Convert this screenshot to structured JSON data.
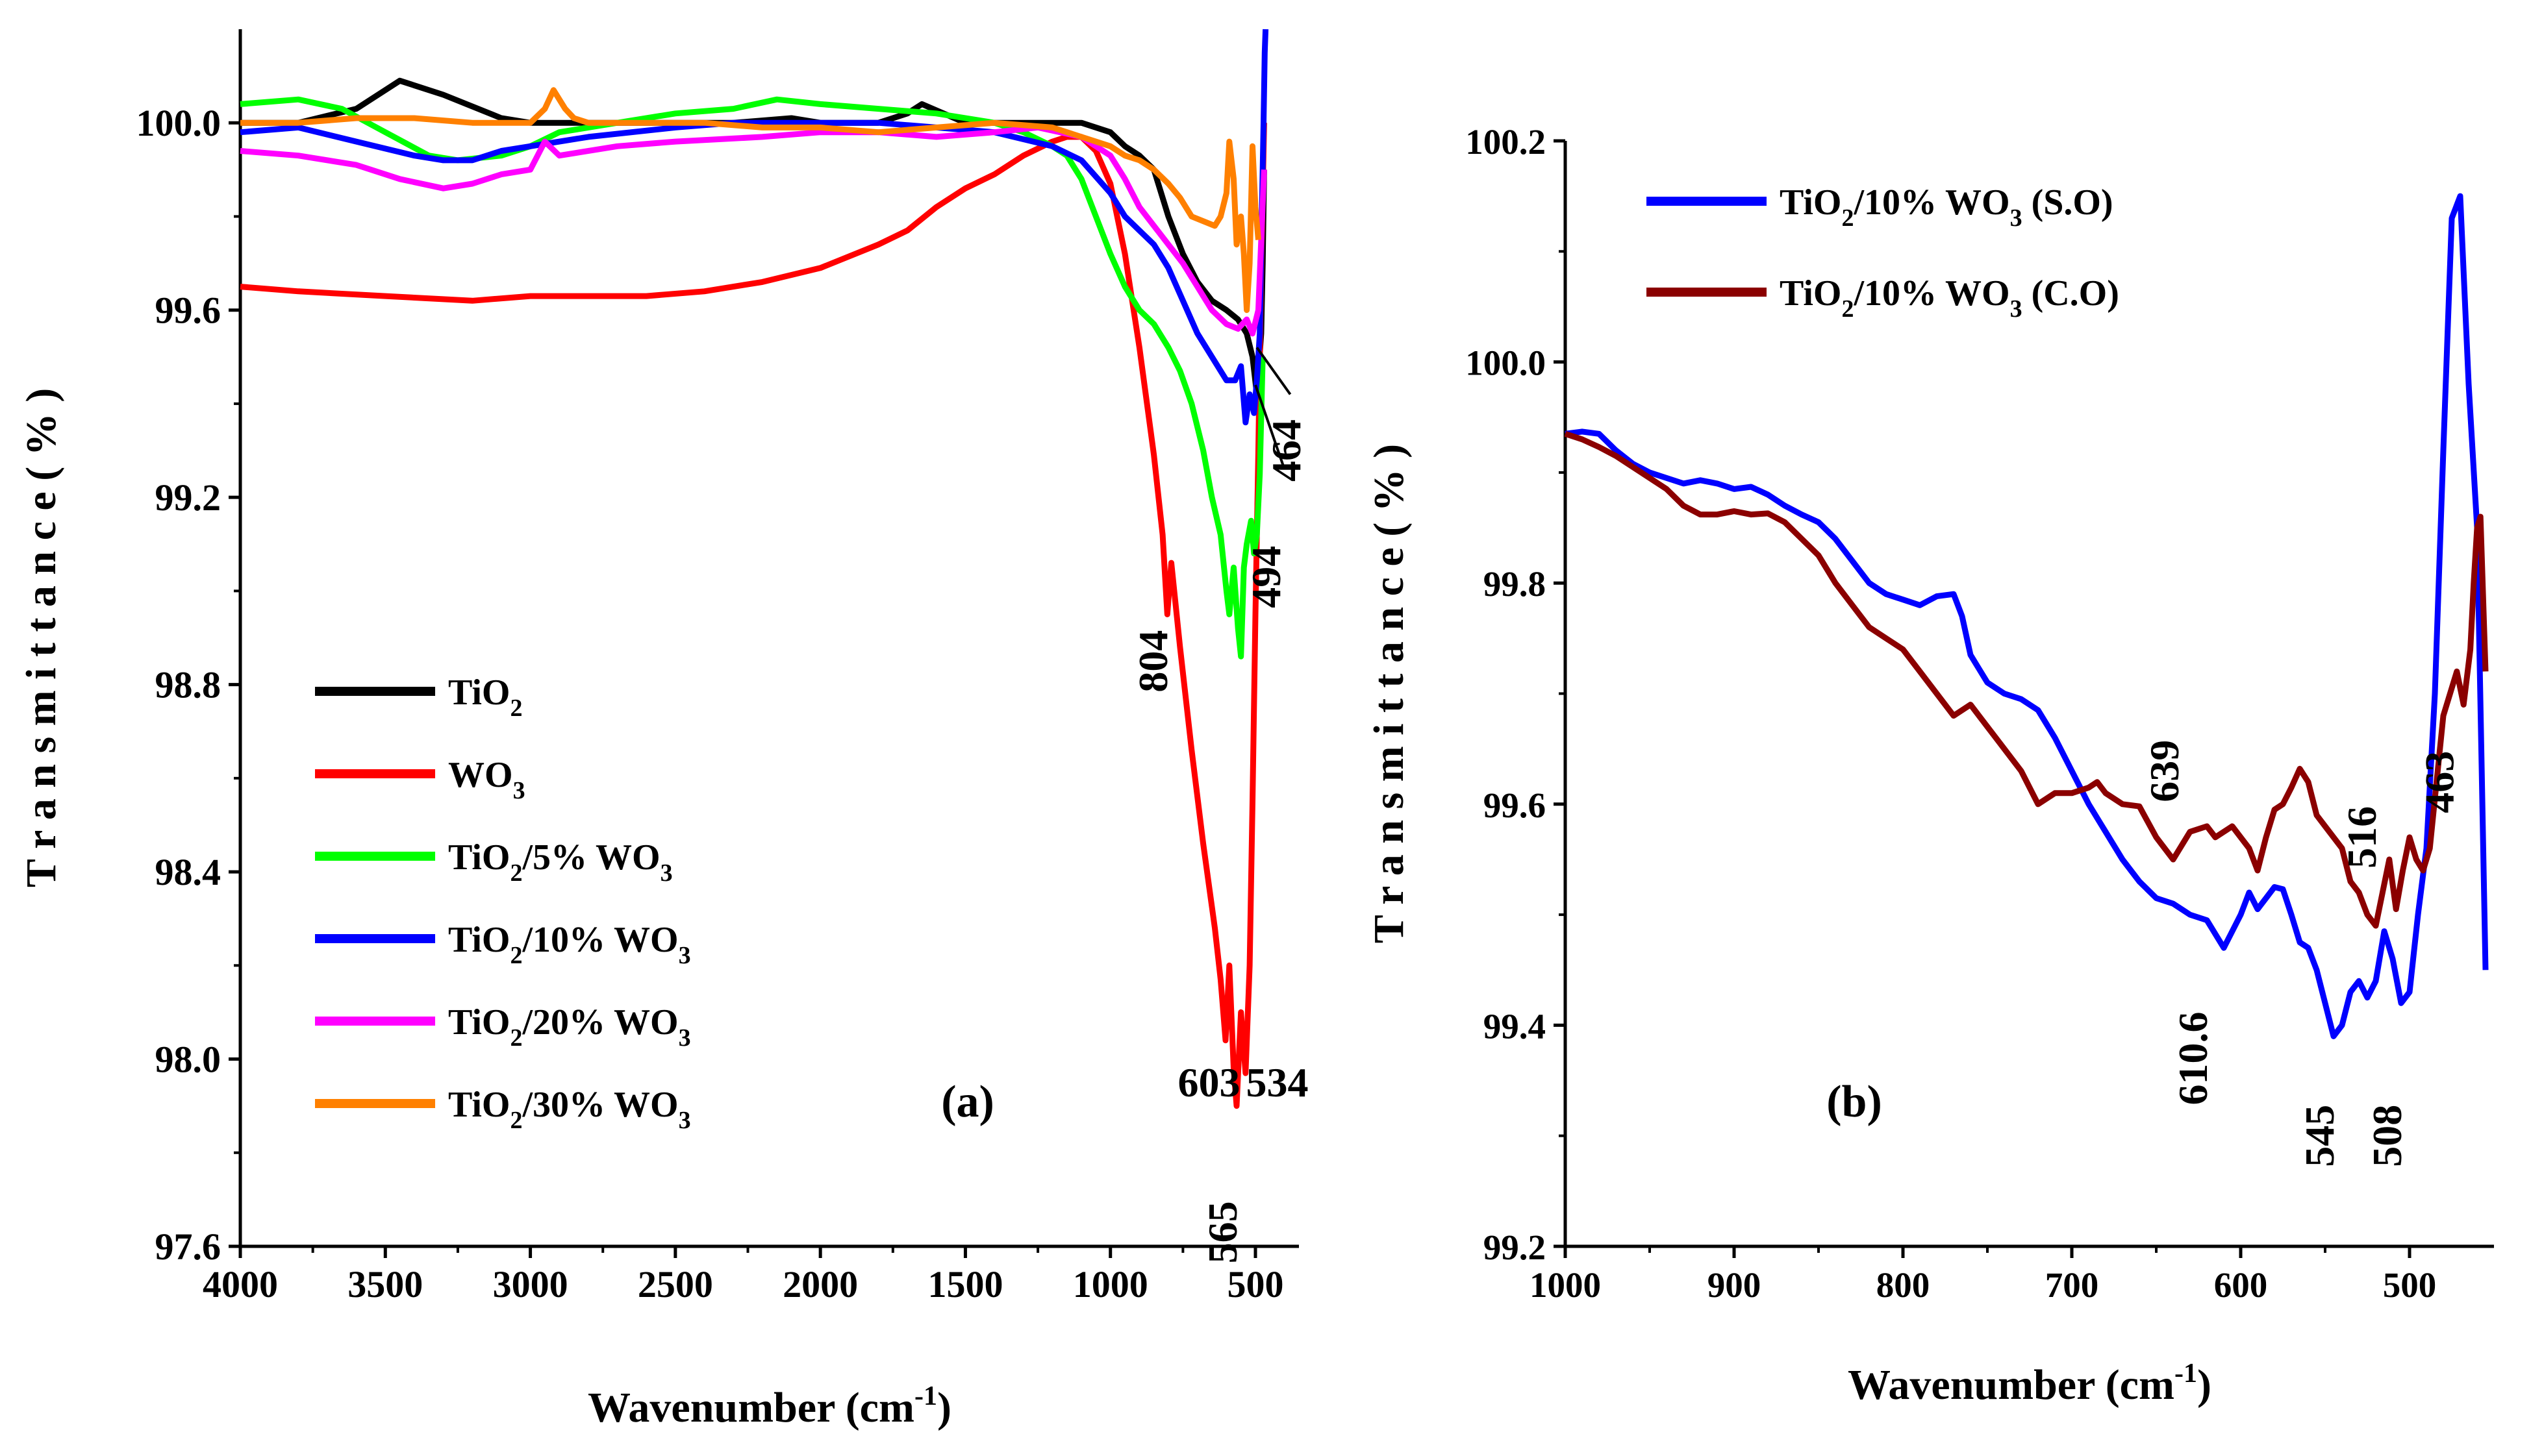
{
  "figure_labels": {
    "a": "(a)",
    "b": "(b)"
  },
  "chart_data": [
    {
      "id": "a",
      "type": "line",
      "title": "",
      "panel_label": "(a)",
      "xlabel": "Wavenumber (cm-1)",
      "xlabel_main": "Wavenumber (cm",
      "xlabel_sup": "-1",
      "xlabel_close": ")",
      "ylabel": "T r a n s m i t t a n c e  ( % )",
      "xlim": [
        4000,
        350
      ],
      "ylim": [
        97.6,
        100.2
      ],
      "xticks": [
        4000,
        3500,
        3000,
        2500,
        2000,
        1500,
        1000,
        500
      ],
      "yticks": [
        97.6,
        98.0,
        98.4,
        98.8,
        99.2,
        99.6,
        100.0
      ],
      "ytick_labels": [
        "97.6",
        "98.0",
        "98.4",
        "98.8",
        "99.2",
        "99.6",
        "100.0"
      ],
      "legend_position": "lower-left",
      "series": [
        {
          "name": "TiO2",
          "label": {
            "base": "TiO",
            "sub": "2",
            "rest": "",
            "sub2": ""
          },
          "color": "#000000",
          "x": [
            4000,
            3800,
            3600,
            3450,
            3300,
            3100,
            3000,
            2800,
            2500,
            2300,
            2100,
            2000,
            1800,
            1700,
            1650,
            1500,
            1300,
            1100,
            1000,
            950,
            900,
            850,
            800,
            750,
            700,
            650,
            600,
            560,
            530,
            510,
            495,
            480,
            475,
            470
          ],
          "y": [
            100.0,
            100.0,
            100.03,
            100.09,
            100.06,
            100.01,
            100.0,
            100.0,
            100.0,
            100.0,
            100.01,
            100.0,
            100.0,
            100.02,
            100.04,
            100.0,
            100.0,
            100.0,
            99.98,
            99.95,
            99.93,
            99.9,
            99.8,
            99.72,
            99.66,
            99.62,
            99.6,
            99.58,
            99.55,
            99.5,
            99.42,
            99.55,
            99.7,
            99.9
          ]
        },
        {
          "name": "WO3",
          "label": {
            "base": "WO",
            "sub": "3",
            "rest": "",
            "sub2": ""
          },
          "color": "#ff0000",
          "x": [
            4000,
            3800,
            3500,
            3200,
            3000,
            2800,
            2600,
            2400,
            2200,
            2000,
            1800,
            1700,
            1600,
            1500,
            1400,
            1300,
            1200,
            1150,
            1100,
            1050,
            1000,
            950,
            900,
            850,
            820,
            804,
            790,
            760,
            720,
            680,
            640,
            620,
            603,
            590,
            575,
            565,
            550,
            534,
            520,
            510,
            500,
            490,
            480,
            470
          ],
          "y": [
            99.65,
            99.64,
            99.63,
            99.62,
            99.63,
            99.63,
            99.63,
            99.64,
            99.66,
            99.69,
            99.74,
            99.77,
            99.82,
            99.86,
            99.89,
            99.93,
            99.96,
            99.97,
            99.97,
            99.94,
            99.87,
            99.72,
            99.52,
            99.29,
            99.12,
            98.95,
            99.06,
            98.88,
            98.66,
            98.46,
            98.28,
            98.17,
            98.04,
            98.2,
            97.98,
            97.9,
            98.1,
            97.97,
            98.2,
            98.55,
            98.95,
            99.3,
            99.7,
            100.0
          ]
        },
        {
          "name": "TiO2/5% WO3",
          "label": {
            "base": "TiO",
            "sub": "2",
            "rest": "/5% WO",
            "sub2": "3"
          },
          "color": "#00ff00",
          "x": [
            4000,
            3800,
            3650,
            3500,
            3350,
            3250,
            3100,
            3000,
            2900,
            2700,
            2500,
            2300,
            2150,
            2000,
            1800,
            1600,
            1400,
            1300,
            1200,
            1150,
            1100,
            1050,
            1000,
            950,
            900,
            850,
            800,
            760,
            720,
            680,
            650,
            620,
            600,
            590,
            575,
            560,
            550,
            540,
            530,
            515,
            505,
            495,
            485,
            475
          ],
          "y": [
            100.04,
            100.05,
            100.03,
            99.98,
            99.93,
            99.92,
            99.93,
            99.95,
            99.98,
            100.0,
            100.02,
            100.03,
            100.05,
            100.04,
            100.03,
            100.02,
            100.0,
            99.98,
            99.95,
            99.93,
            99.88,
            99.8,
            99.72,
            99.65,
            99.6,
            99.57,
            99.52,
            99.47,
            99.4,
            99.3,
            99.2,
            99.12,
            99.0,
            98.95,
            99.05,
            98.92,
            98.86,
            99.05,
            99.1,
            99.15,
            99.08,
            99.12,
            99.25,
            99.5
          ]
        },
        {
          "name": "TiO2/10% WO3",
          "label": {
            "base": "TiO",
            "sub": "2",
            "rest": "/10% WO",
            "sub2": "3"
          },
          "color": "#0000ff",
          "x": [
            4000,
            3800,
            3600,
            3400,
            3300,
            3200,
            3100,
            3000,
            2800,
            2500,
            2300,
            2000,
            1800,
            1600,
            1400,
            1200,
            1100,
            1000,
            950,
            900,
            850,
            800,
            750,
            700,
            650,
            600,
            570,
            550,
            534,
            520,
            505,
            495,
            485,
            478,
            472,
            468,
            465
          ],
          "y": [
            99.98,
            99.99,
            99.96,
            99.93,
            99.92,
            99.92,
            99.94,
            99.95,
            99.97,
            99.99,
            100.0,
            100.0,
            100.0,
            99.99,
            99.98,
            99.95,
            99.92,
            99.85,
            99.8,
            99.77,
            99.74,
            99.69,
            99.62,
            99.55,
            99.5,
            99.45,
            99.45,
            99.48,
            99.36,
            99.42,
            99.38,
            99.45,
            99.55,
            99.8,
            100.0,
            100.15,
            100.2
          ]
        },
        {
          "name": "TiO2/20% WO3",
          "label": {
            "base": "TiO",
            "sub": "2",
            "rest": "/20% WO",
            "sub2": "3"
          },
          "color": "#ff00ff",
          "x": [
            4000,
            3800,
            3600,
            3450,
            3300,
            3200,
            3100,
            3000,
            2950,
            2900,
            2700,
            2500,
            2200,
            2000,
            1800,
            1600,
            1400,
            1250,
            1100,
            1000,
            950,
            900,
            850,
            800,
            750,
            700,
            650,
            600,
            560,
            530,
            510,
            490,
            480,
            470
          ],
          "y": [
            99.94,
            99.93,
            99.91,
            99.88,
            99.86,
            99.87,
            99.89,
            99.9,
            99.96,
            99.93,
            99.95,
            99.96,
            99.97,
            99.98,
            99.98,
            99.97,
            99.98,
            99.99,
            99.97,
            99.93,
            99.88,
            99.82,
            99.78,
            99.74,
            99.7,
            99.65,
            99.6,
            99.57,
            99.56,
            99.58,
            99.55,
            99.6,
            99.75,
            99.9
          ]
        },
        {
          "name": "TiO2/30% WO3",
          "label": {
            "base": "TiO",
            "sub": "2",
            "rest": "/30% WO",
            "sub2": "3"
          },
          "color": "#ff8000",
          "x": [
            4000,
            3800,
            3600,
            3400,
            3200,
            3000,
            2950,
            2920,
            2880,
            2850,
            2800,
            2600,
            2400,
            2200,
            2000,
            1800,
            1600,
            1400,
            1200,
            1100,
            1000,
            950,
            900,
            850,
            800,
            760,
            720,
            680,
            640,
            620,
            600,
            590,
            575,
            565,
            550,
            540,
            530,
            520,
            510,
            500,
            490
          ],
          "y": [
            100.0,
            100.0,
            100.01,
            100.01,
            100.0,
            100.0,
            100.03,
            100.07,
            100.03,
            100.01,
            100.0,
            100.0,
            100.0,
            99.99,
            99.99,
            99.98,
            99.99,
            100.0,
            99.99,
            99.97,
            99.95,
            99.93,
            99.92,
            99.9,
            99.87,
            99.84,
            99.8,
            99.79,
            99.78,
            99.8,
            99.85,
            99.96,
            99.88,
            99.74,
            99.8,
            99.72,
            99.6,
            99.7,
            99.95,
            99.82,
            99.75
          ]
        }
      ],
      "annotations": [
        {
          "text": "804",
          "x": 804,
          "y": 98.85,
          "rotation": -90
        },
        {
          "text": "603",
          "x": 660,
          "y": 97.92,
          "rotation": 0
        },
        {
          "text": "534",
          "x": 425,
          "y": 97.92,
          "rotation": 0
        },
        {
          "text": "565",
          "x": 565,
          "y": 97.63,
          "rotation": -90
        },
        {
          "text": "494",
          "x": 415,
          "y": 99.03,
          "rotation": -90
        },
        {
          "text": "464",
          "x": 345,
          "y": 99.3,
          "rotation": -90
        }
      ]
    },
    {
      "id": "b",
      "type": "line",
      "title": "",
      "panel_label": "(b)",
      "xlabel": "Wavenumber (cm-1)",
      "xlabel_main": "Wavenumber (cm",
      "xlabel_sup": "-1",
      "xlabel_close": ")",
      "ylabel": "T r a n s m i t t a n c e  ( % )",
      "xlim": [
        1000,
        450
      ],
      "ylim": [
        99.2,
        100.2
      ],
      "xticks": [
        1000,
        900,
        800,
        700,
        600,
        500
      ],
      "yticks": [
        99.2,
        99.4,
        99.6,
        99.8,
        100.0,
        100.2
      ],
      "ytick_labels": [
        "99.2",
        "99.4",
        "99.6",
        "99.8",
        "100.0",
        "100.2"
      ],
      "legend_position": "top-left",
      "series": [
        {
          "name": "TiO2/10% WO3 (S.O)",
          "label": {
            "base": "TiO",
            "sub": "2",
            "rest": "/10% WO",
            "sub2": "3",
            "tail": " (S.O)"
          },
          "color": "#0000ff",
          "x": [
            1000,
            990,
            980,
            970,
            960,
            950,
            940,
            930,
            920,
            910,
            900,
            890,
            880,
            870,
            860,
            850,
            840,
            830,
            820,
            810,
            800,
            790,
            780,
            770,
            765,
            760,
            750,
            740,
            730,
            720,
            710,
            700,
            690,
            680,
            670,
            660,
            650,
            640,
            630,
            620,
            610,
            600,
            595,
            590,
            585,
            580,
            575,
            570,
            565,
            560,
            555,
            550,
            545,
            540,
            535,
            530,
            525,
            520,
            515,
            510,
            505,
            500,
            495,
            490,
            485,
            480,
            475,
            470,
            465,
            460,
            455
          ],
          "y": [
            99.935,
            99.937,
            99.935,
            99.92,
            99.908,
            99.9,
            99.895,
            99.89,
            99.893,
            99.89,
            99.885,
            99.887,
            99.88,
            99.87,
            99.862,
            99.855,
            99.84,
            99.82,
            99.8,
            99.79,
            99.785,
            99.78,
            99.788,
            99.79,
            99.77,
            99.735,
            99.71,
            99.7,
            99.695,
            99.685,
            99.66,
            99.63,
            99.6,
            99.575,
            99.55,
            99.53,
            99.515,
            99.51,
            99.5,
            99.495,
            99.47,
            99.5,
            99.52,
            99.505,
            99.515,
            99.525,
            99.523,
            99.5,
            99.475,
            99.47,
            99.45,
            99.42,
            99.39,
            99.4,
            99.43,
            99.44,
            99.425,
            99.44,
            99.485,
            99.46,
            99.42,
            99.43,
            99.5,
            99.56,
            99.7,
            99.92,
            100.13,
            100.15,
            99.98,
            99.85,
            99.45
          ]
        },
        {
          "name": "TiO2/10% WO3 (C.O)",
          "label": {
            "base": "TiO",
            "sub": "2",
            "rest": "/10% WO",
            "sub2": "3",
            "tail": " (C.O)"
          },
          "color": "#8b0000",
          "x": [
            1000,
            990,
            980,
            970,
            960,
            950,
            940,
            930,
            920,
            910,
            900,
            890,
            880,
            870,
            860,
            850,
            840,
            830,
            820,
            810,
            800,
            790,
            780,
            770,
            760,
            750,
            740,
            730,
            720,
            710,
            700,
            690,
            685,
            680,
            670,
            660,
            650,
            640,
            630,
            620,
            615,
            610,
            605,
            600,
            595,
            590,
            585,
            580,
            575,
            570,
            565,
            560,
            555,
            550,
            545,
            540,
            535,
            530,
            525,
            520,
            516,
            512,
            508,
            504,
            500,
            496,
            492,
            488,
            484,
            480,
            476,
            472,
            468,
            464,
            462,
            460,
            458,
            455
          ],
          "y": [
            99.935,
            99.93,
            99.923,
            99.915,
            99.905,
            99.895,
            99.885,
            99.87,
            99.862,
            99.862,
            99.865,
            99.862,
            99.863,
            99.855,
            99.84,
            99.825,
            99.8,
            99.78,
            99.76,
            99.75,
            99.74,
            99.72,
            99.7,
            99.68,
            99.69,
            99.67,
            99.65,
            99.63,
            99.6,
            99.61,
            99.61,
            99.615,
            99.62,
            99.61,
            99.6,
            99.598,
            99.57,
            99.55,
            99.575,
            99.58,
            99.57,
            99.575,
            99.58,
            99.57,
            99.56,
            99.54,
            99.57,
            99.595,
            99.6,
            99.615,
            99.632,
            99.62,
            99.59,
            99.58,
            99.57,
            99.56,
            99.53,
            99.52,
            99.5,
            99.49,
            99.52,
            99.55,
            99.505,
            99.54,
            99.57,
            99.55,
            99.54,
            99.56,
            99.62,
            99.68,
            99.7,
            99.72,
            99.69,
            99.74,
            99.8,
            99.85,
            99.86,
            99.72
          ]
        }
      ],
      "annotations": [
        {
          "text": "639",
          "x": 637,
          "y": 99.63,
          "rotation": -90
        },
        {
          "text": "610.6",
          "x": 620,
          "y": 99.37,
          "rotation": -90
        },
        {
          "text": "545",
          "x": 545,
          "y": 99.3,
          "rotation": -90
        },
        {
          "text": "516",
          "x": 520,
          "y": 99.57,
          "rotation": -90
        },
        {
          "text": "508",
          "x": 505,
          "y": 99.3,
          "rotation": -90
        },
        {
          "text": "463",
          "x": 474,
          "y": 99.62,
          "rotation": -90
        }
      ]
    }
  ]
}
